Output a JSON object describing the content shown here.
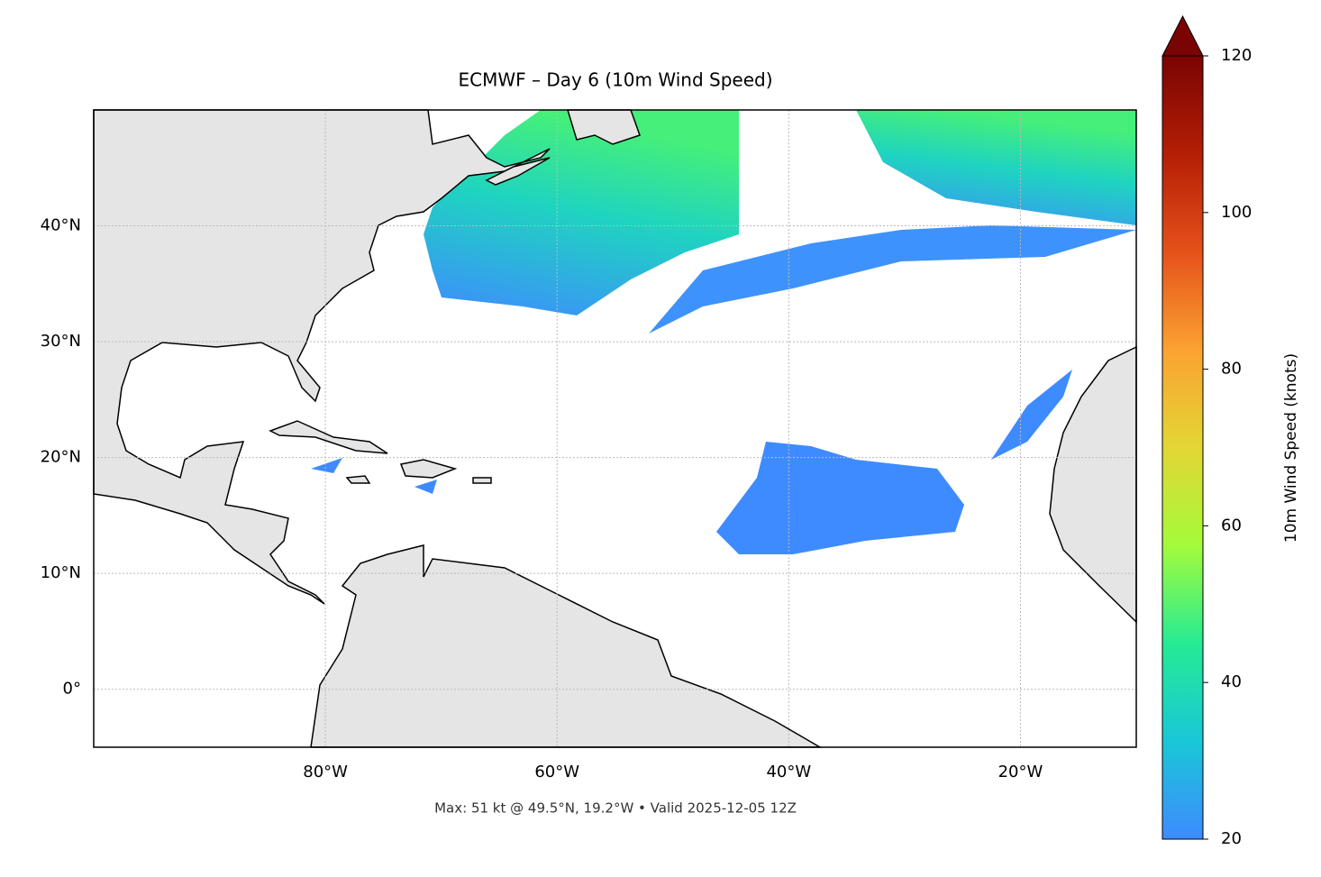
{
  "chart_data": {
    "type": "map",
    "title": "ECMWF – Day 6 (10m Wind Speed)",
    "subtitle": "Max: 51 kt @ 49.5°N, 19.2°W • Valid 2025-12-05 12Z",
    "xlim": [
      -100,
      -10
    ],
    "ylim": [
      -5,
      50
    ],
    "xticks": [
      {
        "value": -80,
        "label": "80°W"
      },
      {
        "value": -60,
        "label": "60°W"
      },
      {
        "value": -40,
        "label": "40°W"
      },
      {
        "value": -20,
        "label": "20°W"
      }
    ],
    "yticks": [
      {
        "value": 0,
        "label": "0°"
      },
      {
        "value": 10,
        "label": "10°N"
      },
      {
        "value": 20,
        "label": "20°N"
      },
      {
        "value": 30,
        "label": "30°N"
      },
      {
        "value": 40,
        "label": "40°N"
      }
    ],
    "grid": true,
    "colorbar": {
      "label": "10m Wind Speed (knots)",
      "lim": [
        20,
        120
      ],
      "ticks": [
        20,
        40,
        60,
        80,
        100,
        120
      ],
      "colors": [
        "#3e8bff",
        "#1ac7d8",
        "#25eb93",
        "#a4fb3b",
        "#e3d634",
        "#fba232",
        "#e5511a",
        "#b41e05",
        "#7a0403"
      ]
    }
  }
}
